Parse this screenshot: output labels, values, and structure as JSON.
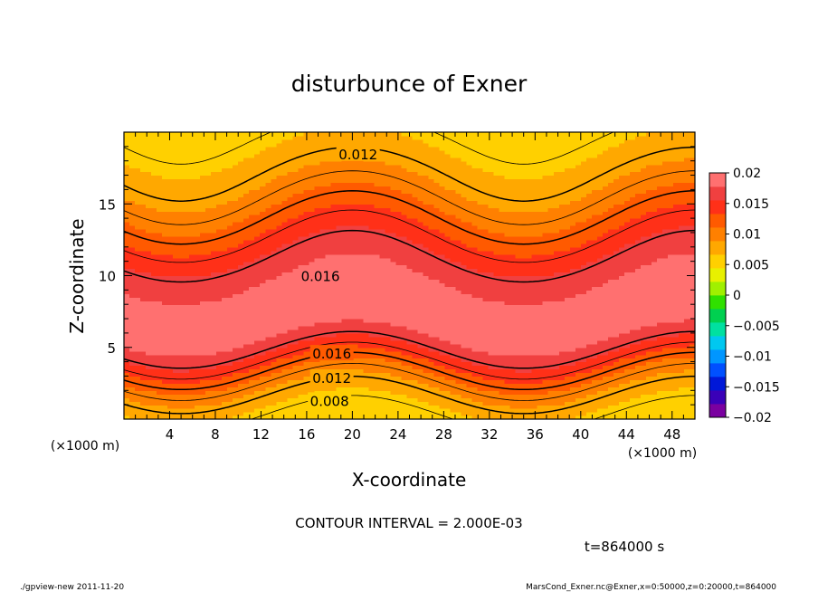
{
  "chart_data": {
    "type": "heatmap",
    "title": "disturbunce of Exner",
    "xlabel": "X-coordinate",
    "ylabel": "Z-coordinate",
    "x_unit_left": "(×1000 m)",
    "x_unit_right": "(×1000 m)",
    "xlim": [
      0,
      50
    ],
    "ylim": [
      0,
      20
    ],
    "x_ticks": [
      4,
      8,
      12,
      16,
      20,
      24,
      28,
      32,
      36,
      40,
      44,
      48
    ],
    "y_ticks": [
      5,
      10,
      15
    ],
    "colorbar": {
      "min": -0.02,
      "max": 0.02,
      "tick_labels": [
        "0.02",
        "0.015",
        "0.01",
        "0.005",
        "0",
        "−0.005",
        "−0.01",
        "−0.015",
        "−0.02"
      ],
      "tick_values": [
        0.02,
        0.015,
        0.01,
        0.005,
        0,
        -0.005,
        -0.01,
        -0.015,
        -0.02
      ],
      "colors": [
        "#7a00a0",
        "#3a00b8",
        "#0018d8",
        "#0050ff",
        "#0096ff",
        "#00c8f0",
        "#00e0a0",
        "#00d050",
        "#30e000",
        "#a0f000",
        "#e8f000",
        "#ffd000",
        "#ffa800",
        "#ff8000",
        "#ff5a00",
        "#ff3018",
        "#f04040",
        "#ff7070"
      ]
    },
    "contour_interval_text": "CONTOUR INTERVAL = 2.000E-03",
    "time_text": "t=864000 s",
    "contour_labels": [
      {
        "text": "0.012",
        "x": 20.5,
        "z": 18.5
      },
      {
        "text": "0.016",
        "x": 17.2,
        "z": 10.0
      },
      {
        "text": "0.016",
        "x": 18.2,
        "z": 4.6
      },
      {
        "text": "0.012",
        "x": 18.2,
        "z": 2.9
      },
      {
        "text": "0.008",
        "x": 18.0,
        "z": 1.3
      }
    ],
    "contour_levels": [
      0.004,
      0.006,
      0.008,
      0.01,
      0.012,
      0.014,
      0.016
    ],
    "field_description": "peak ~0.019 near z=7 at x=0, 16-24, 48; minimum toward top and bottom"
  },
  "footer": {
    "left": "./gpview-new   2011-11-20",
    "right": "MarsCond_Exner.nc@Exner,x=0:50000,z=0:20000,t=864000"
  }
}
